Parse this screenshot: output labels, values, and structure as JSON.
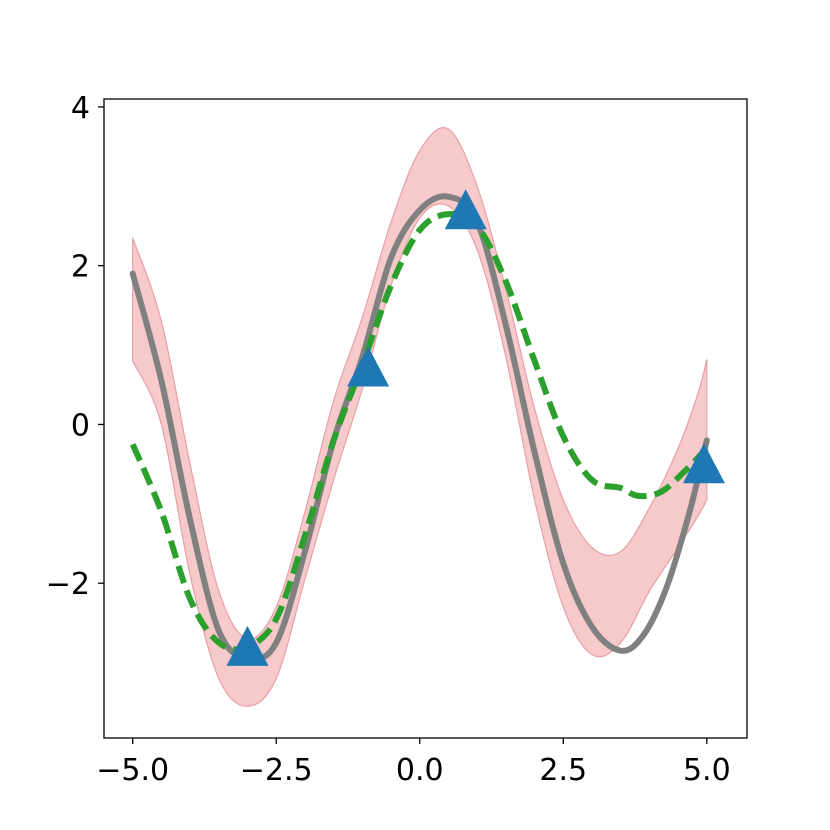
{
  "chart_data": {
    "type": "line",
    "title": "",
    "xlabel": "",
    "ylabel": "",
    "xlim": [
      -5.5,
      5.7
    ],
    "ylim": [
      -3.95,
      4.1
    ],
    "grid": false,
    "legend": "none",
    "x_ticks": [
      -5.0,
      -2.5,
      0.0,
      2.5,
      5.0
    ],
    "x_tick_labels": [
      "−5.0",
      "−2.5",
      "0.0",
      "2.5",
      "5.0"
    ],
    "y_ticks": [
      -2,
      0,
      2,
      4
    ],
    "y_tick_labels": [
      "−2",
      "0",
      "2",
      "4"
    ],
    "series": [
      {
        "kind": "band",
        "color": "#f5c6c8",
        "x": [
          -5.0,
          -4.5,
          -4.0,
          -3.5,
          -3.0,
          -2.5,
          -2.0,
          -1.5,
          -1.0,
          -0.5,
          0.0,
          0.5,
          1.0,
          1.5,
          2.0,
          2.5,
          3.0,
          3.5,
          4.0,
          4.5,
          4.85,
          5.0
        ],
        "upper": [
          2.35,
          1.3,
          -0.5,
          -2.1,
          -2.7,
          -2.3,
          -1.1,
          0.3,
          1.35,
          2.55,
          3.45,
          3.72,
          3.0,
          1.7,
          0.2,
          -0.95,
          -1.55,
          -1.6,
          -1.05,
          -0.3,
          0.4,
          0.82
        ],
        "lower": [
          0.8,
          0.0,
          -1.9,
          -3.2,
          -3.55,
          -3.2,
          -1.95,
          -0.7,
          0.45,
          1.75,
          2.6,
          2.75,
          2.2,
          0.85,
          -0.95,
          -2.3,
          -2.9,
          -2.75,
          -2.1,
          -1.55,
          -1.15,
          -0.95
        ]
      },
      {
        "kind": "line",
        "style": "solid",
        "color": "#808080",
        "x": [
          -5.0,
          -4.5,
          -4.0,
          -3.5,
          -3.0,
          -2.5,
          -2.0,
          -1.5,
          -1.0,
          -0.5,
          0.0,
          0.5,
          1.0,
          1.5,
          2.0,
          2.5,
          3.0,
          3.5,
          3.9,
          4.3,
          4.7,
          5.0
        ],
        "y": [
          1.9,
          0.55,
          -1.2,
          -2.6,
          -2.95,
          -2.75,
          -1.6,
          -0.2,
          0.85,
          2.1,
          2.7,
          2.87,
          2.55,
          1.25,
          -0.35,
          -1.75,
          -2.55,
          -2.85,
          -2.65,
          -2.05,
          -1.1,
          -0.2
        ]
      },
      {
        "kind": "line",
        "style": "dashed",
        "color": "#2ca02c",
        "x": [
          -5.0,
          -4.5,
          -4.0,
          -3.5,
          -3.0,
          -2.5,
          -2.0,
          -1.5,
          -1.0,
          -0.5,
          0.0,
          0.5,
          1.0,
          1.5,
          2.0,
          2.5,
          3.0,
          3.5,
          3.8,
          4.2,
          4.6,
          5.0
        ],
        "y": [
          -0.25,
          -1.1,
          -2.2,
          -2.75,
          -2.8,
          -2.45,
          -1.4,
          -0.2,
          0.75,
          1.75,
          2.45,
          2.65,
          2.5,
          1.8,
          0.8,
          -0.15,
          -0.7,
          -0.8,
          -0.9,
          -0.85,
          -0.6,
          -0.3
        ]
      },
      {
        "kind": "scatter",
        "marker": "triangle",
        "color": "#1f77b4",
        "x": [
          -3.0,
          -0.9,
          0.8,
          4.95
        ],
        "y": [
          -2.85,
          0.67,
          2.65,
          -0.55
        ]
      }
    ]
  }
}
